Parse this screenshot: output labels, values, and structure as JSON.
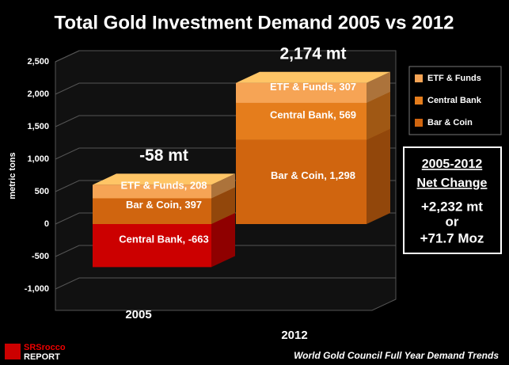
{
  "chart_data": {
    "type": "bar",
    "stacked": true,
    "title": "Total Gold Investment Demand 2005 vs 2012",
    "y_label": "metric tons",
    "categories": [
      "2005",
      "2012"
    ],
    "series": [
      {
        "name": "Bar & Coin",
        "color": "#d0650f",
        "values": [
          397,
          1298
        ],
        "value_labels": [
          "Bar & Coin, 397",
          "Bar & Coin, 1,298"
        ]
      },
      {
        "name": "Central Bank",
        "color": "#e57d1c",
        "colors": [
          "#cc0000",
          "#e57d1c"
        ],
        "values": [
          -663,
          569
        ],
        "value_labels": [
          "Central Bank, -663",
          "Central Bank, 569"
        ]
      },
      {
        "name": "ETF & Funds",
        "color": "#f6a455",
        "values": [
          208,
          307
        ],
        "value_labels": [
          "ETF & Funds, 208",
          "ETF & Funds, 307"
        ]
      }
    ],
    "totals": [
      "-58 mt",
      "2,174 mt"
    ],
    "ylim": [
      -1000,
      2500
    ],
    "yticks": [
      {
        "value": -1000,
        "label": "-1,000"
      },
      -500,
      0,
      500,
      {
        "value": 1000,
        "label": "1,000"
      },
      {
        "value": 1500,
        "label": "1,500"
      },
      {
        "value": 2000,
        "label": "2,000"
      },
      {
        "value": 2500,
        "label": "2,500"
      }
    ],
    "grid": true,
    "legend": "right",
    "net_change": [
      "2005-2012",
      "Net Change",
      "+2,232 mt",
      "or",
      "+71.7 Moz"
    ],
    "source": "World Gold Council Full Year Demand Trends",
    "logo": [
      "SRSrocco",
      "REPORT"
    ]
  }
}
